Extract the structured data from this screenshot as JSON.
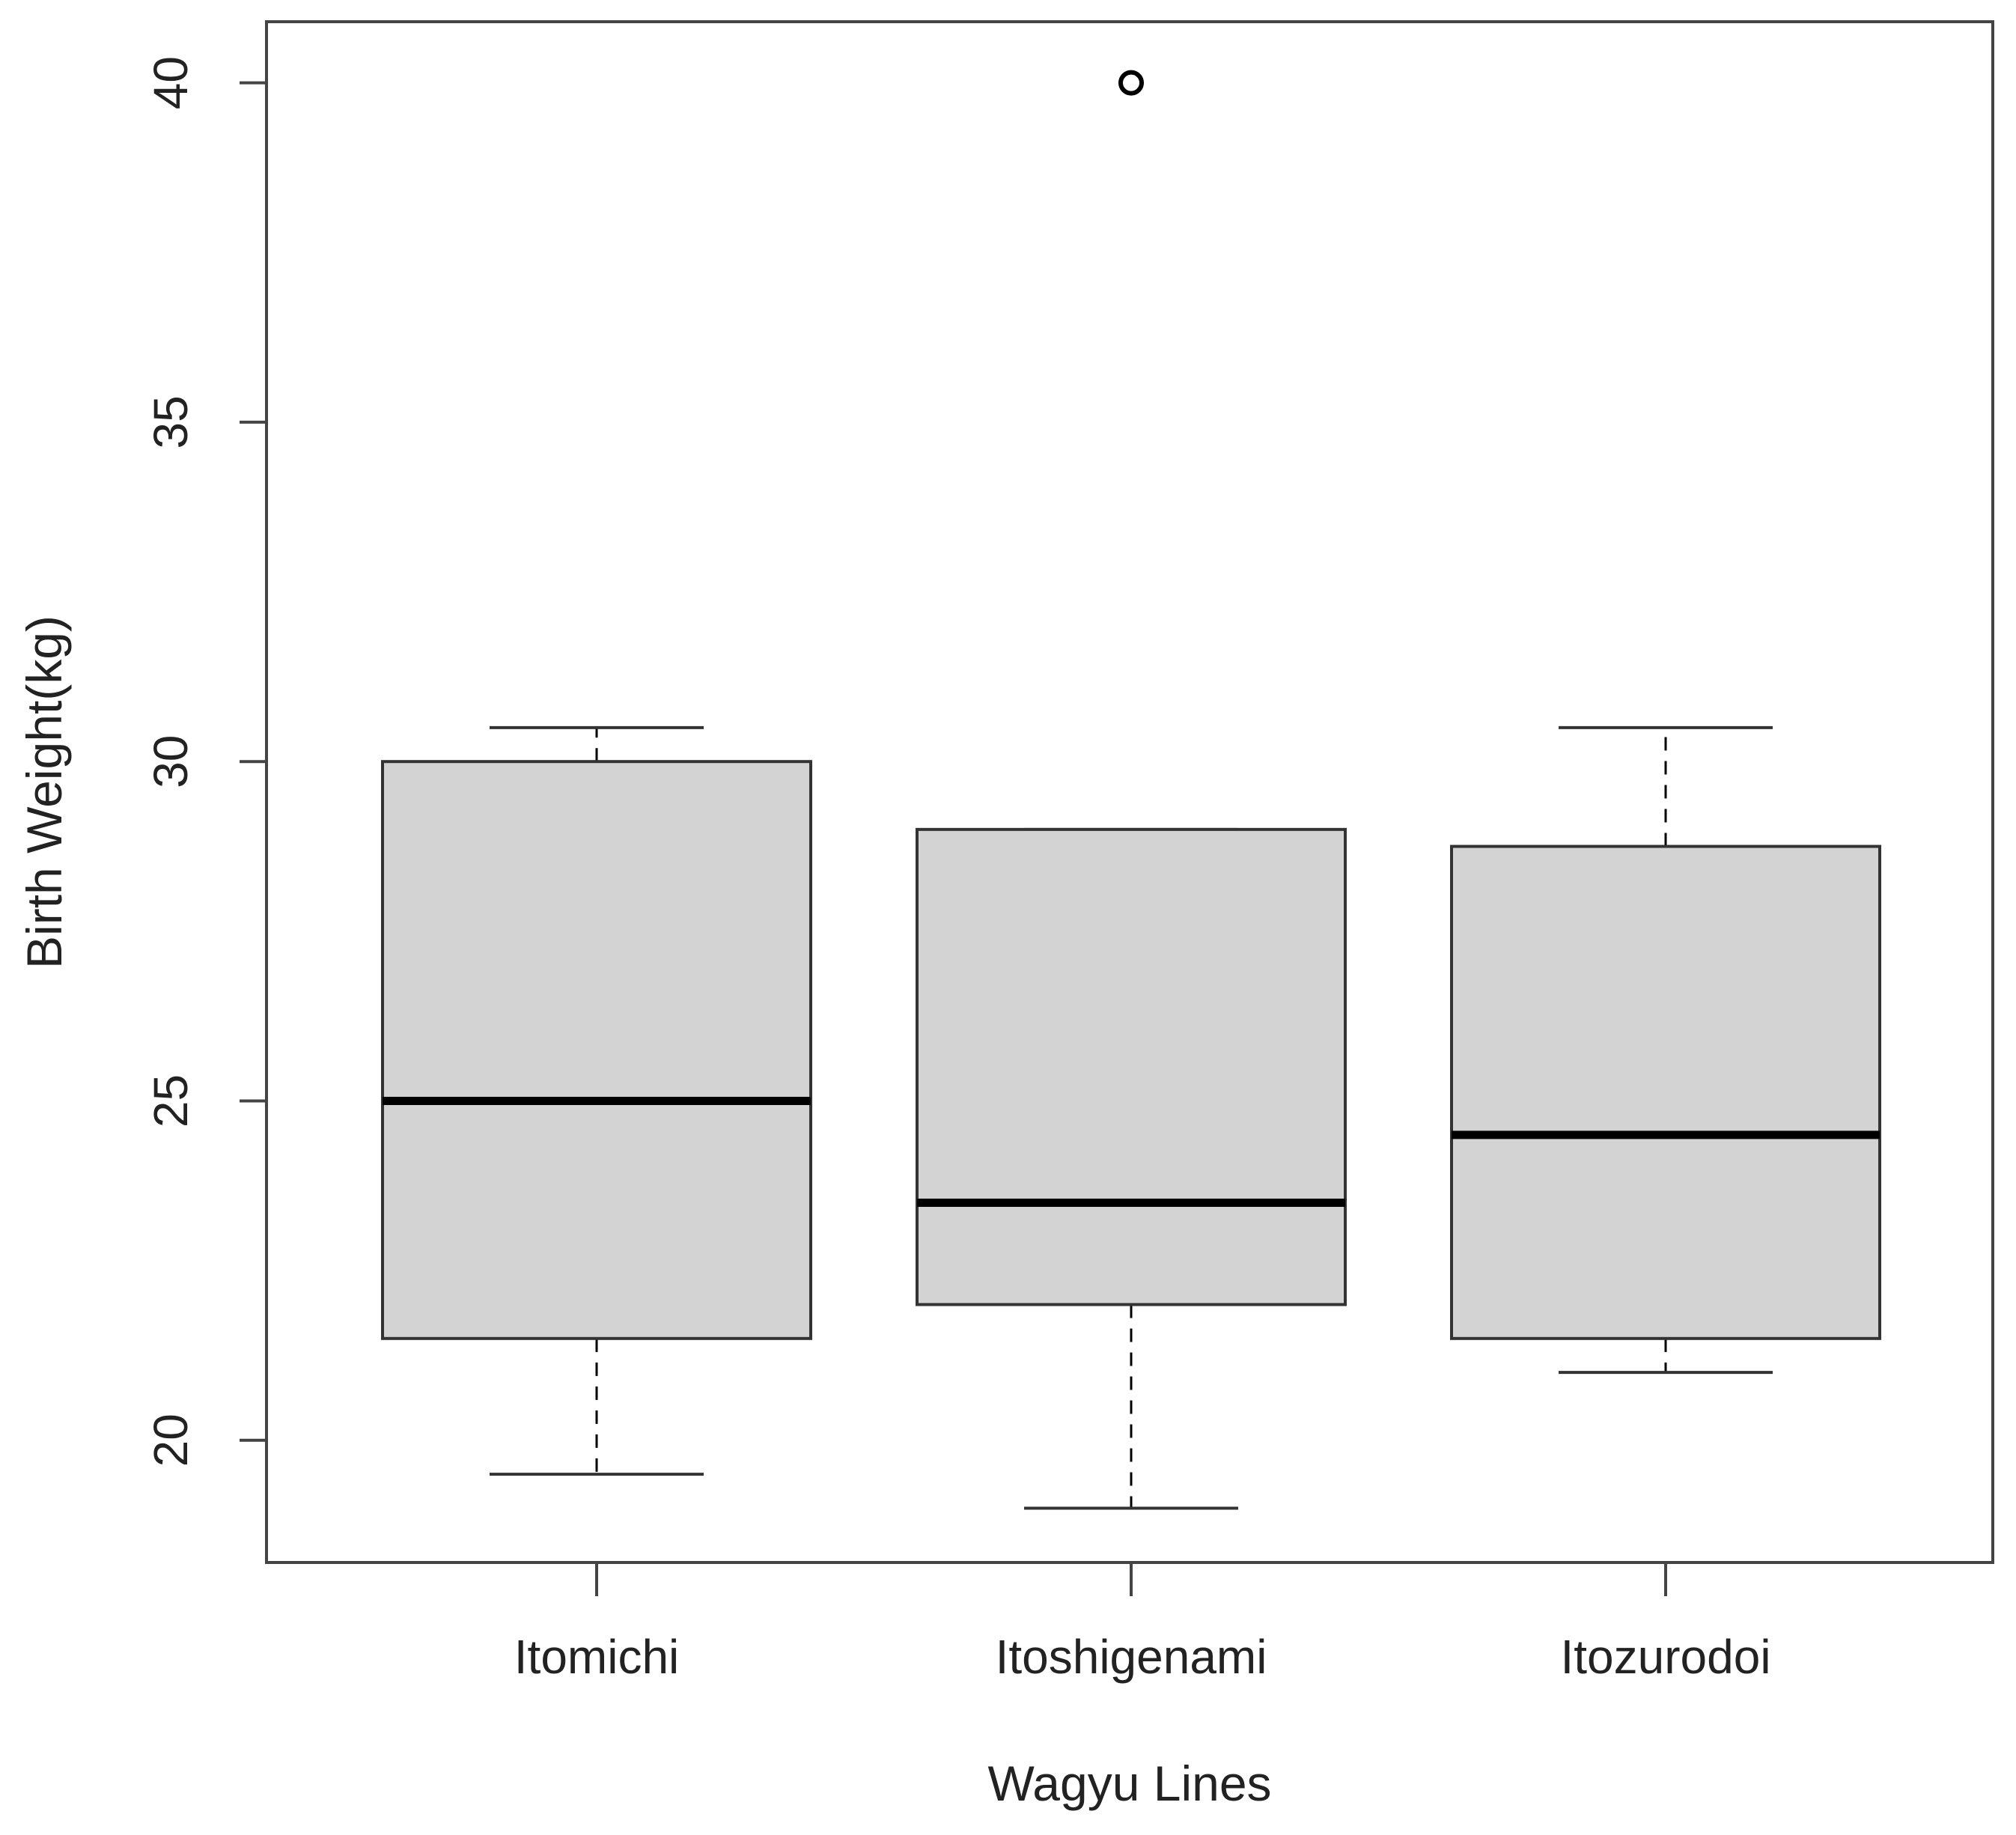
{
  "chart_data": {
    "type": "box",
    "xlabel": "Wagyu Lines",
    "ylabel": "Birth Weight(kg)",
    "ylim": [
      18.2,
      40.9
    ],
    "yticks": [
      20,
      25,
      30,
      35,
      40
    ],
    "grid": false,
    "categories": [
      "Itomichi",
      "Itoshigenami",
      "Itozurodoi"
    ],
    "boxes": [
      {
        "category": "Itomichi",
        "whisker_low": 19.5,
        "q1": 21.5,
        "median": 25.0,
        "q3": 30.0,
        "whisker_high": 30.5,
        "outliers": []
      },
      {
        "category": "Itoshigenami",
        "whisker_low": 19.0,
        "q1": 22.0,
        "median": 23.5,
        "q3": 29.0,
        "whisker_high": 29.0,
        "outliers": [
          40.0
        ]
      },
      {
        "category": "Itozurodoi",
        "whisker_low": 21.0,
        "q1": 21.5,
        "median": 24.5,
        "q3": 28.75,
        "whisker_high": 30.5,
        "outliers": []
      }
    ],
    "box_fill": "#d3d3d3",
    "line_color": "#000000"
  }
}
